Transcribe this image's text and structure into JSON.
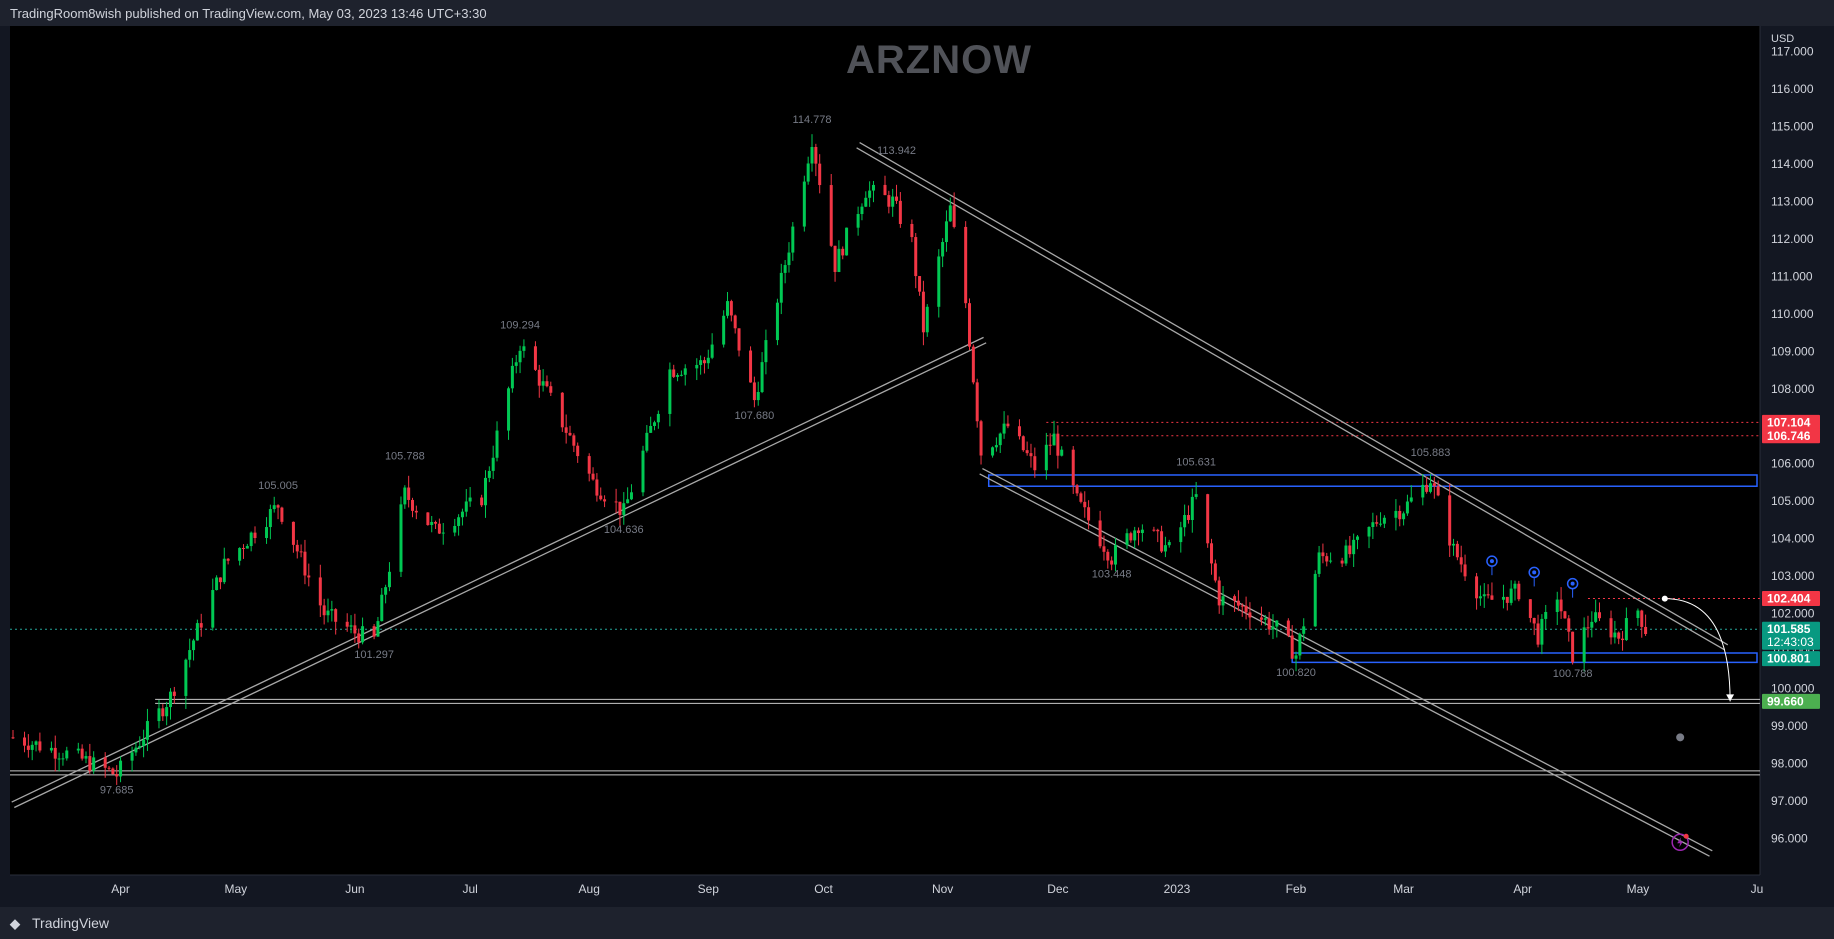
{
  "header": {
    "publisher_text": "TradingRoom8wish published on TradingView.com, May 03, 2023 13:46 UTC+3:30"
  },
  "watermark": {
    "text": "ARZNOW"
  },
  "footer": {
    "brand": "TradingView",
    "logo_icon": "tradingview-logo-icon"
  },
  "chart_data": {
    "type": "candlestick",
    "currency": "USD",
    "y_range": [
      95.4,
      117.2
    ],
    "y_ticks": [
      "117.000",
      "116.000",
      "115.000",
      "114.000",
      "113.000",
      "112.000",
      "111.000",
      "110.000",
      "109.000",
      "108.000",
      "107.000",
      "106.000",
      "105.000",
      "104.000",
      "103.000",
      "102.000",
      "101.000",
      "100.000",
      "99.000",
      "98.000",
      "97.000",
      "96.000"
    ],
    "x_axis": {
      "range": [
        "2022-03-04",
        "2023-06-01"
      ],
      "labels": [
        {
          "text": "Apr",
          "date": "2022-04-01"
        },
        {
          "text": "May",
          "date": "2022-05-01"
        },
        {
          "text": "Jun",
          "date": "2022-06-01"
        },
        {
          "text": "Jul",
          "date": "2022-07-01"
        },
        {
          "text": "Aug",
          "date": "2022-08-01"
        },
        {
          "text": "Sep",
          "date": "2022-09-01"
        },
        {
          "text": "Oct",
          "date": "2022-10-01"
        },
        {
          "text": "Nov",
          "date": "2022-11-01"
        },
        {
          "text": "Dec",
          "date": "2022-12-01"
        },
        {
          "text": "2023",
          "date": "2023-01-01"
        },
        {
          "text": "Feb",
          "date": "2023-02-01"
        },
        {
          "text": "Mar",
          "date": "2023-03-01"
        },
        {
          "text": "Apr",
          "date": "2023-04-01"
        },
        {
          "text": "May",
          "date": "2023-05-01"
        },
        {
          "text": "Ju",
          "date": "2023-06-01"
        }
      ]
    },
    "price_path": [
      [
        "2022-03-04",
        98.7
      ],
      [
        "2022-03-20",
        98.2
      ],
      [
        "2022-03-31",
        97.7
      ],
      [
        "2022-04-14",
        99.8
      ],
      [
        "2022-04-28",
        103.3
      ],
      [
        "2022-05-12",
        104.9
      ],
      [
        "2022-05-24",
        102.0
      ],
      [
        "2022-06-01",
        101.5
      ],
      [
        "2022-06-06",
        101.3
      ],
      [
        "2022-06-14",
        105.2
      ],
      [
        "2022-06-22",
        104.2
      ],
      [
        "2022-07-04",
        105.1
      ],
      [
        "2022-07-14",
        109.2
      ],
      [
        "2022-07-22",
        107.7
      ],
      [
        "2022-08-02",
        105.5
      ],
      [
        "2022-08-10",
        104.7
      ],
      [
        "2022-08-22",
        108.5
      ],
      [
        "2022-08-31",
        108.7
      ],
      [
        "2022-09-06",
        110.2
      ],
      [
        "2022-09-13",
        107.7
      ],
      [
        "2022-09-22",
        111.8
      ],
      [
        "2022-09-28",
        114.7
      ],
      [
        "2022-10-04",
        111.3
      ],
      [
        "2022-10-12",
        113.3
      ],
      [
        "2022-10-19",
        113.0
      ],
      [
        "2022-10-24",
        111.9
      ],
      [
        "2022-10-27",
        109.6
      ],
      [
        "2022-11-03",
        112.8
      ],
      [
        "2022-11-07",
        110.3
      ],
      [
        "2022-11-11",
        106.3
      ],
      [
        "2022-11-18",
        107.0
      ],
      [
        "2022-11-25",
        105.9
      ],
      [
        "2022-11-30",
        106.7
      ],
      [
        "2022-12-06",
        105.0
      ],
      [
        "2022-12-15",
        103.5
      ],
      [
        "2022-12-22",
        104.4
      ],
      [
        "2022-12-30",
        103.7
      ],
      [
        "2023-01-06",
        105.1
      ],
      [
        "2023-01-12",
        102.4
      ],
      [
        "2023-01-20",
        102.1
      ],
      [
        "2023-01-27",
        101.6
      ],
      [
        "2023-02-01",
        100.9
      ],
      [
        "2023-02-07",
        103.5
      ],
      [
        "2023-02-15",
        103.6
      ],
      [
        "2023-02-23",
        104.6
      ],
      [
        "2023-03-01",
        104.8
      ],
      [
        "2023-03-08",
        105.6
      ],
      [
        "2023-03-14",
        103.7
      ],
      [
        "2023-03-22",
        102.3
      ],
      [
        "2023-03-31",
        102.6
      ],
      [
        "2023-04-05",
        101.4
      ],
      [
        "2023-04-10",
        102.5
      ],
      [
        "2023-04-14",
        100.9
      ],
      [
        "2023-04-19",
        101.9
      ],
      [
        "2023-04-26",
        101.4
      ],
      [
        "2023-05-01",
        102.1
      ],
      [
        "2023-05-03",
        101.585
      ]
    ],
    "trendlines": [
      {
        "name": "long-term ascending support",
        "from": [
          "2022-03-04",
          96.9
        ],
        "to": [
          "2022-11-12",
          109.3
        ]
      },
      {
        "name": "channel upper line",
        "from": [
          "2022-10-10",
          114.5
        ],
        "to": [
          "2023-05-24",
          101.1
        ]
      },
      {
        "name": "channel lower line",
        "from": [
          "2022-11-11",
          105.8
        ],
        "to": [
          "2023-05-20",
          95.6
        ]
      }
    ],
    "horizontal_lines": [
      {
        "price": 99.66,
        "label": "99.660",
        "color": "#ffffff",
        "style": "double"
      },
      {
        "price": 97.75,
        "label": "",
        "color": "#ffffff",
        "style": "double"
      },
      {
        "price": 107.104,
        "label": "107.104",
        "color": "#f23645",
        "style": "dotted"
      },
      {
        "price": 106.746,
        "label": "106.746",
        "color": "#f23645",
        "style": "dotted"
      },
      {
        "price": 102.404,
        "label": "102.404",
        "color": "#f23645",
        "style": "dotted"
      },
      {
        "price": 101.585,
        "label": "",
        "color": "#26a69a",
        "style": "dotted"
      }
    ],
    "zones": [
      {
        "name": "resistance box",
        "from_date": "2022-11-13",
        "to_date": "2023-06-01",
        "top": 105.7,
        "bottom": 105.4,
        "color": "#2962ff"
      },
      {
        "name": "support box",
        "from_date": "2023-01-31",
        "to_date": "2023-06-01",
        "top": 100.95,
        "bottom": 100.7,
        "color": "#2962ff"
      }
    ],
    "price_tags": [
      {
        "label": "107.104",
        "price": 107.104,
        "color": "#f23645"
      },
      {
        "label": "106.746",
        "price": 106.746,
        "color": "#f23645"
      },
      {
        "label": "102.404",
        "price": 102.404,
        "color": "#f23645"
      },
      {
        "label": "101.585",
        "price": 101.585,
        "color": "#089981",
        "sublabel": "12:43:03"
      },
      {
        "label": "100.801",
        "price": 100.801,
        "color": "#089981"
      },
      {
        "label": "99.660",
        "price": 99.66,
        "color": "#4caf50"
      }
    ],
    "annotations": [
      {
        "text": "114.778",
        "date": "2022-09-28",
        "price": 114.778,
        "pos": "above"
      },
      {
        "text": "113.942",
        "date": "2022-10-20",
        "price": 113.942,
        "pos": "above"
      },
      {
        "text": "109.294",
        "date": "2022-07-14",
        "price": 109.294,
        "pos": "above"
      },
      {
        "text": "107.680",
        "date": "2022-09-13",
        "price": 107.68,
        "pos": "below"
      },
      {
        "text": "105.788",
        "date": "2022-06-14",
        "price": 105.788,
        "pos": "above"
      },
      {
        "text": "105.005",
        "date": "2022-05-12",
        "price": 105.005,
        "pos": "above"
      },
      {
        "text": "104.636",
        "date": "2022-08-10",
        "price": 104.636,
        "pos": "below"
      },
      {
        "text": "101.297",
        "date": "2022-06-06",
        "price": 101.297,
        "pos": "below"
      },
      {
        "text": "97.685",
        "date": "2022-03-31",
        "price": 97.685,
        "pos": "below"
      },
      {
        "text": "105.631",
        "date": "2023-01-06",
        "price": 105.631,
        "pos": "above"
      },
      {
        "text": "103.448",
        "date": "2022-12-15",
        "price": 103.448,
        "pos": "below"
      },
      {
        "text": "105.883",
        "date": "2023-03-08",
        "price": 105.883,
        "pos": "above"
      },
      {
        "text": "100.820",
        "date": "2023-02-01",
        "price": 100.82,
        "pos": "below"
      },
      {
        "text": "100.788",
        "date": "2023-04-14",
        "price": 100.788,
        "pos": "below"
      }
    ],
    "markers": [
      {
        "kind": "circle",
        "date": "2023-03-24",
        "price": 103.4
      },
      {
        "kind": "circle",
        "date": "2023-04-04",
        "price": 103.1
      },
      {
        "kind": "circle",
        "date": "2023-04-14",
        "price": 102.8
      }
    ],
    "projection_arrow": {
      "from": [
        "2023-05-08",
        102.4
      ],
      "to": [
        "2023-05-25",
        99.66
      ]
    }
  },
  "icons": {
    "alert": "clock-icon",
    "bolt": "lightning-icon"
  }
}
